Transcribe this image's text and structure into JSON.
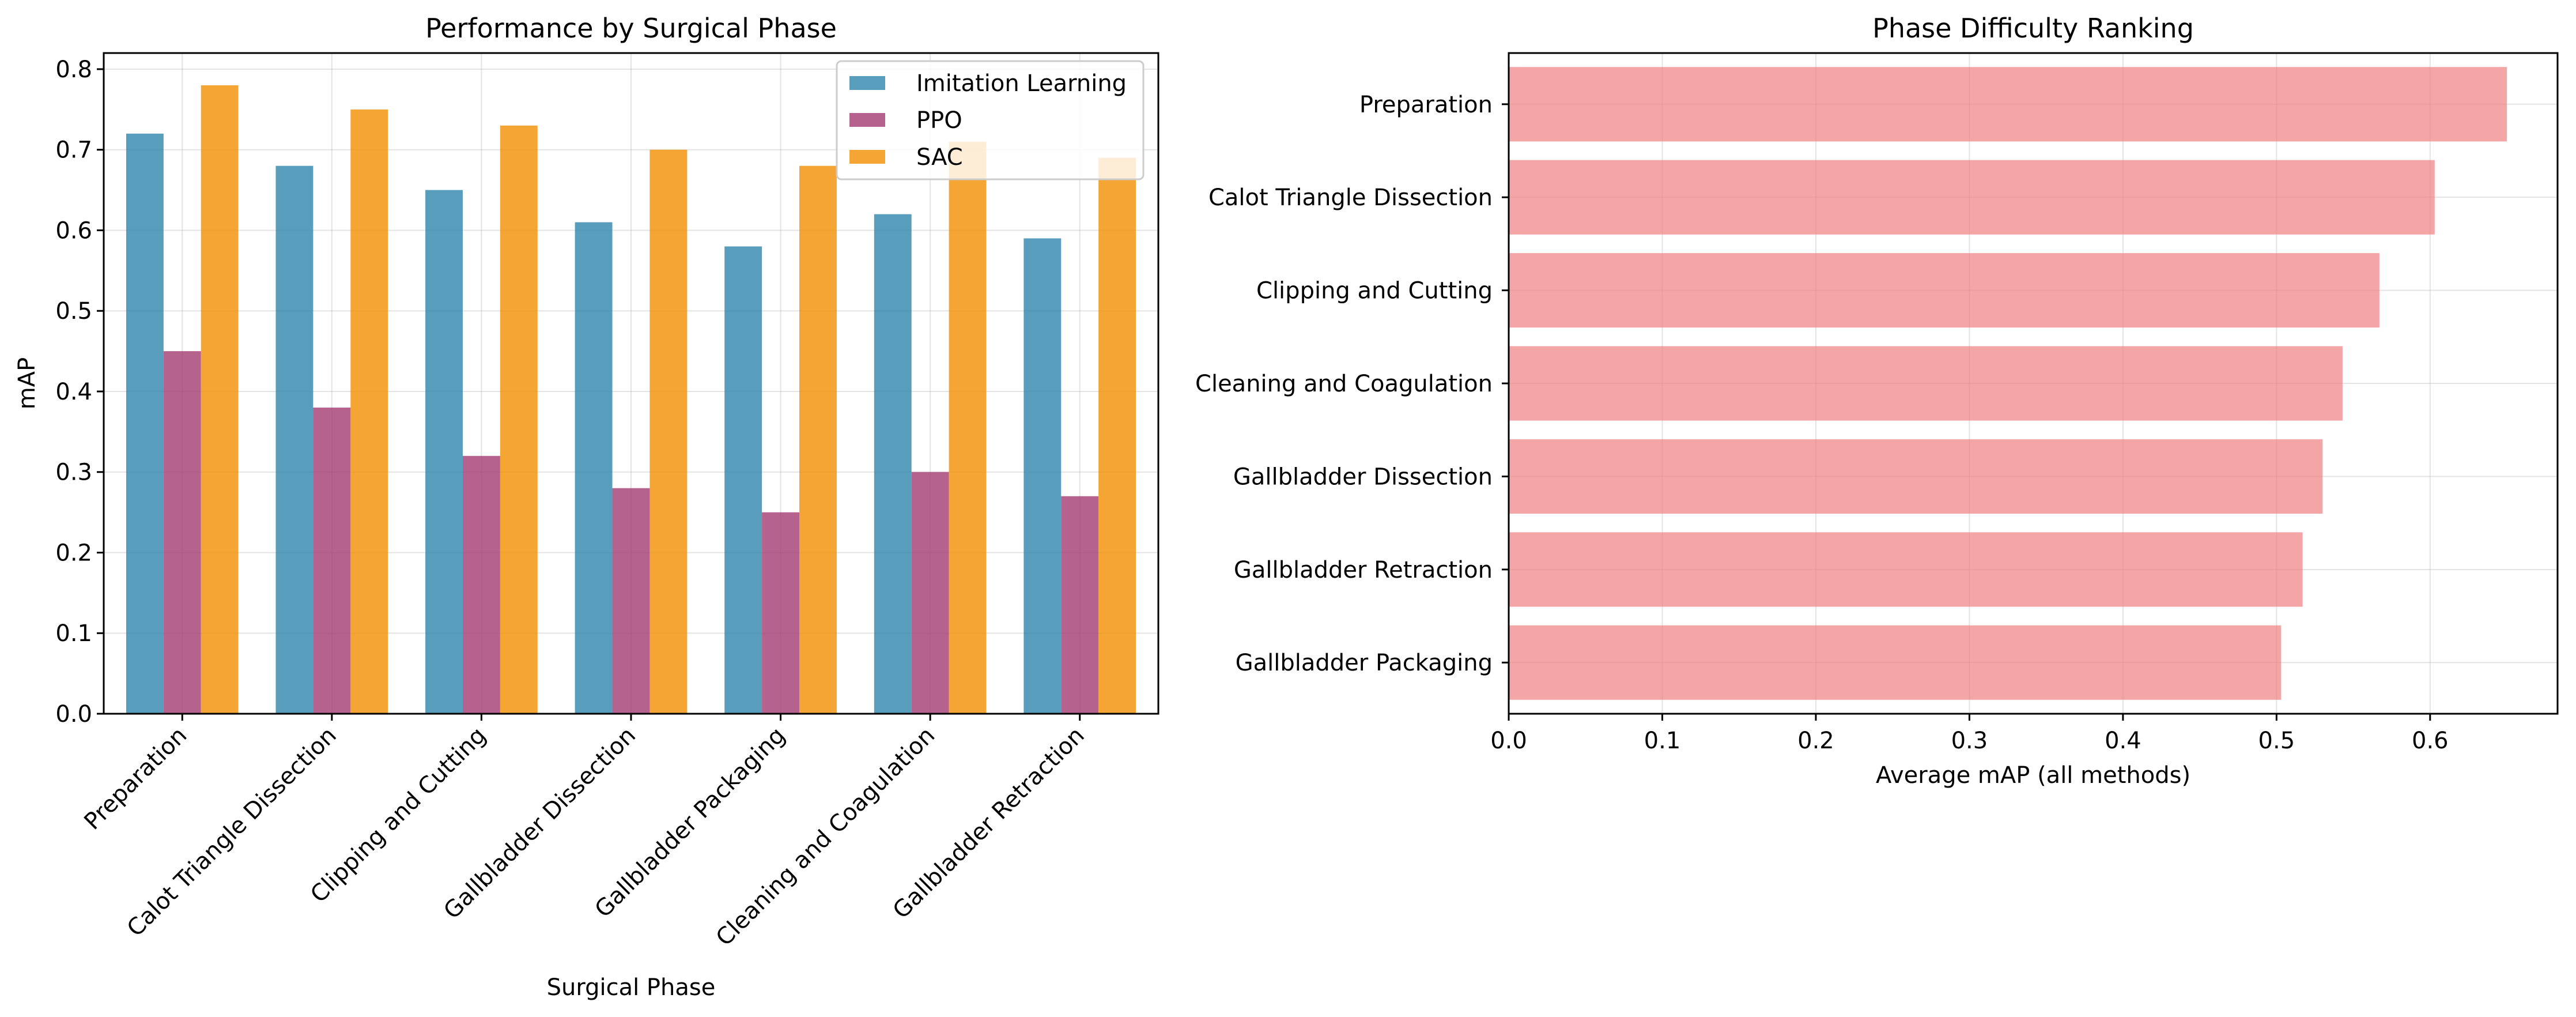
{
  "chart_data": [
    {
      "type": "bar",
      "title": "Performance by Surgical Phase",
      "xlabel": "Surgical Phase",
      "ylabel": "mAP",
      "ylim": [
        0,
        0.82
      ],
      "yticks": [
        0.0,
        0.1,
        0.2,
        0.3,
        0.4,
        0.5,
        0.6,
        0.7,
        0.8
      ],
      "grid": true,
      "legend_position": "top-right",
      "categories": [
        "Preparation",
        "Calot Triangle Dissection",
        "Clipping and Cutting",
        "Gallbladder Dissection",
        "Gallbladder Packaging",
        "Cleaning and Coagulation",
        "Gallbladder Retraction"
      ],
      "series": [
        {
          "name": "Imitation Learning",
          "color": "#2E86AB",
          "values": [
            0.72,
            0.68,
            0.65,
            0.61,
            0.58,
            0.62,
            0.59
          ]
        },
        {
          "name": "PPO",
          "color": "#A23B72",
          "values": [
            0.45,
            0.38,
            0.32,
            0.28,
            0.25,
            0.3,
            0.27
          ]
        },
        {
          "name": "SAC",
          "color": "#F18F01",
          "values": [
            0.78,
            0.75,
            0.73,
            0.7,
            0.68,
            0.71,
            0.69
          ]
        }
      ]
    },
    {
      "type": "bar",
      "orientation": "horizontal",
      "title": "Phase Difficulty Ranking",
      "xlabel": "Average mAP (all methods)",
      "ylabel": "",
      "xlim": [
        0,
        0.683
      ],
      "xticks": [
        0.0,
        0.1,
        0.2,
        0.3,
        0.4,
        0.5,
        0.6
      ],
      "grid": true,
      "color": "#F08080",
      "categories": [
        "Preparation",
        "Calot Triangle Dissection",
        "Clipping and Cutting",
        "Cleaning and Coagulation",
        "Gallbladder Dissection",
        "Gallbladder Retraction",
        "Gallbladder Packaging"
      ],
      "values": [
        0.65,
        0.603,
        0.567,
        0.543,
        0.53,
        0.517,
        0.503
      ]
    }
  ]
}
